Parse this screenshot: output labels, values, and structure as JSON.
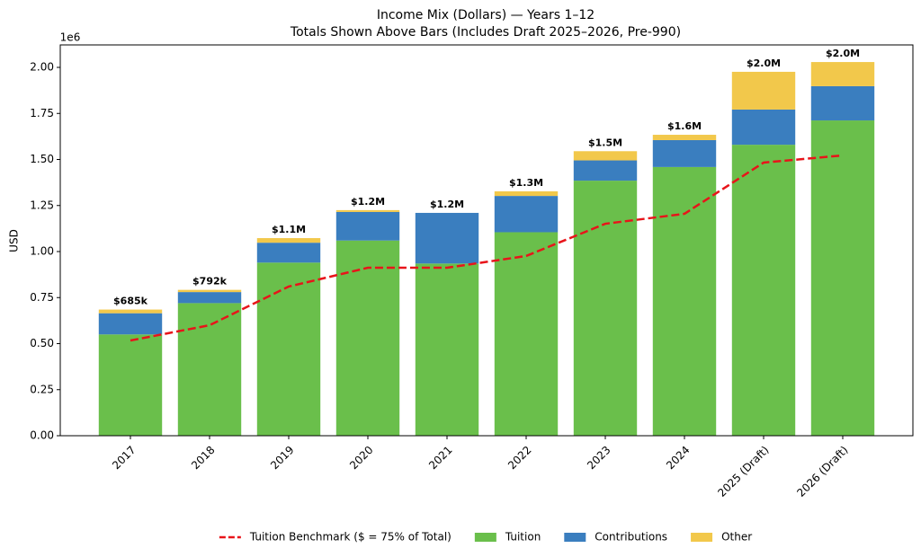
{
  "chart_data": {
    "type": "bar",
    "stacked": true,
    "title": "Income Mix (Dollars) — Years 1–12",
    "subtitle": "Totals Shown Above Bars (Includes Draft 2025–2026, Pre-990)",
    "y_label": "USD",
    "y_offset_label": "1e6",
    "categories": [
      "2017",
      "2018",
      "2019",
      "2020",
      "2021",
      "2022",
      "2023",
      "2024",
      "2025 (Draft)",
      "2026 (Draft)"
    ],
    "series": [
      {
        "name": "Tuition",
        "color": "#6abf4b",
        "values": [
          550000,
          720000,
          940000,
          1060000,
          935000,
          1105000,
          1385000,
          1459000,
          1580000,
          1712000
        ]
      },
      {
        "name": "Contributions",
        "color": "#3a7ebf",
        "values": [
          115000,
          60000,
          108000,
          155000,
          275000,
          197000,
          110000,
          146000,
          191000,
          186000
        ]
      },
      {
        "name": "Other",
        "color": "#f2c84b",
        "values": [
          20000,
          12000,
          25000,
          10000,
          0,
          25000,
          50000,
          29000,
          205000,
          131000
        ]
      }
    ],
    "line_series": {
      "name": "Tuition Benchmark ($ = 75% of Total)",
      "color": "#e8141a",
      "style": "dashed",
      "values": [
        517000,
        600000,
        810000,
        912000,
        912000,
        976000,
        1151000,
        1205000,
        1483000,
        1522000
      ]
    },
    "totals": {
      "values": [
        685000,
        792000,
        1073000,
        1225000,
        1210000,
        1327000,
        1545000,
        1634000,
        1976000,
        2029000
      ],
      "value_labels": [
        "$685k",
        "$792k",
        "$1.1M",
        "$1.2M",
        "$1.2M",
        "$1.3M",
        "$1.5M",
        "$1.6M",
        "$2.0M",
        "$2.0M"
      ]
    },
    "ylim": [
      0,
      2122000
    ],
    "yticks": [
      {
        "value": 0,
        "label": "0.00"
      },
      {
        "value": 250000,
        "label": "0.25"
      },
      {
        "value": 500000,
        "label": "0.50"
      },
      {
        "value": 750000,
        "label": "0.75"
      },
      {
        "value": 1000000,
        "label": "1.00"
      },
      {
        "value": 1250000,
        "label": "1.25"
      },
      {
        "value": 1500000,
        "label": "1.50"
      },
      {
        "value": 1750000,
        "label": "1.75"
      },
      {
        "value": 2000000,
        "label": "2.00"
      }
    ],
    "legend": "lower center"
  }
}
